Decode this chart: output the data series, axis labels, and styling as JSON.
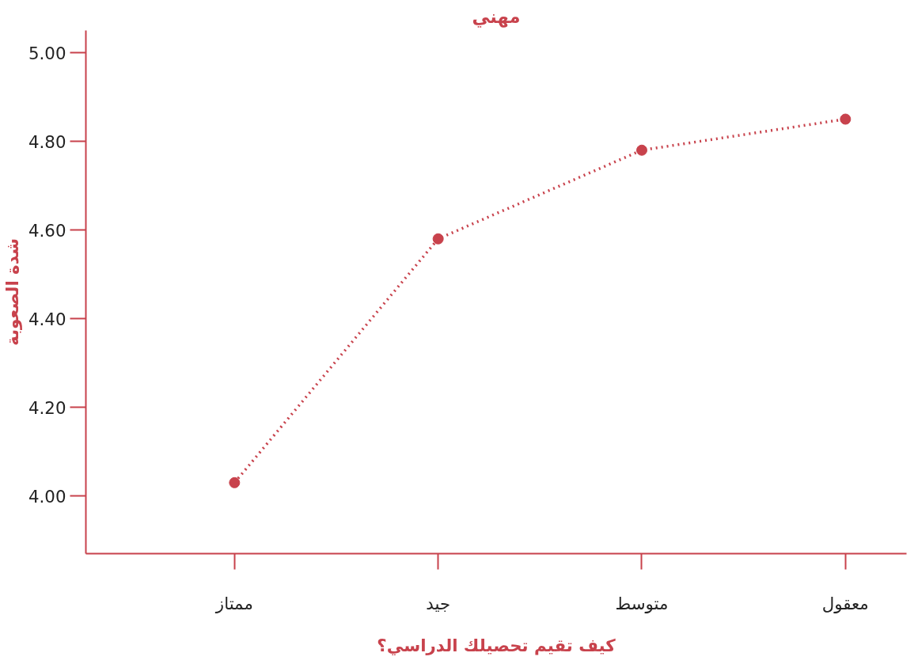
{
  "chart_data": {
    "type": "line",
    "title": "مهني",
    "xlabel": "كيف تقيم تحصيلك الدراسي؟",
    "ylabel": "شدة الصعوبة",
    "categories": [
      "ممتاز",
      "جيد",
      "متوسط",
      "معقول"
    ],
    "series": [
      {
        "color": "#c8424c",
        "values": [
          4.03,
          4.58,
          4.78,
          4.85
        ]
      }
    ],
    "ylim": [
      3.87,
      5.05
    ],
    "yticks": [
      {
        "value": 4.0,
        "label": "4.00"
      },
      {
        "value": 4.2,
        "label": "4.20"
      },
      {
        "value": 4.4,
        "label": "4.40"
      },
      {
        "value": 4.6,
        "label": "4.60"
      },
      {
        "value": 4.8,
        "label": "4.80"
      },
      {
        "value": 5.0,
        "label": "5.00"
      }
    ],
    "marker": "circle",
    "line_style": "dotted"
  }
}
